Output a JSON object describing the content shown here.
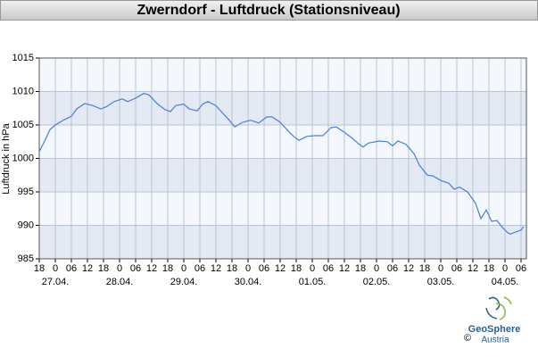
{
  "chart_data": {
    "type": "line",
    "title": "Zwerndorf - Luftdruck (Stationsniveau)",
    "ylabel": "Luftdruck in hPa",
    "color": "#4a7fd6",
    "grid": true,
    "xlim": [
      0,
      182
    ],
    "ylim": [
      985,
      1015
    ],
    "yticks": [
      985,
      990,
      995,
      1000,
      1005,
      1010,
      1015
    ],
    "xticks": [
      {
        "value": 0,
        "label": "18"
      },
      {
        "value": 6,
        "label": "0"
      },
      {
        "value": 12,
        "label": "06"
      },
      {
        "value": 18,
        "label": "12"
      },
      {
        "value": 24,
        "label": "18"
      },
      {
        "value": 30,
        "label": "0"
      },
      {
        "value": 36,
        "label": "06"
      },
      {
        "value": 42,
        "label": "12"
      },
      {
        "value": 48,
        "label": "18"
      },
      {
        "value": 54,
        "label": "0"
      },
      {
        "value": 60,
        "label": "06"
      },
      {
        "value": 66,
        "label": "12"
      },
      {
        "value": 72,
        "label": "18"
      },
      {
        "value": 78,
        "label": "0"
      },
      {
        "value": 84,
        "label": "06"
      },
      {
        "value": 90,
        "label": "12"
      },
      {
        "value": 96,
        "label": "18"
      },
      {
        "value": 102,
        "label": "0"
      },
      {
        "value": 108,
        "label": "06"
      },
      {
        "value": 114,
        "label": "12"
      },
      {
        "value": 120,
        "label": "18"
      },
      {
        "value": 126,
        "label": "0"
      },
      {
        "value": 132,
        "label": "06"
      },
      {
        "value": 138,
        "label": "12"
      },
      {
        "value": 144,
        "label": "18"
      },
      {
        "value": 150,
        "label": "0"
      },
      {
        "value": 156,
        "label": "06"
      },
      {
        "value": 162,
        "label": "12"
      },
      {
        "value": 168,
        "label": "18"
      },
      {
        "value": 174,
        "label": "0"
      },
      {
        "value": 180,
        "label": "06"
      }
    ],
    "date_labels": [
      {
        "value": 6,
        "label": "27.04."
      },
      {
        "value": 30,
        "label": "28.04."
      },
      {
        "value": 54,
        "label": "29.04."
      },
      {
        "value": 78,
        "label": "30.04."
      },
      {
        "value": 102,
        "label": "01.05."
      },
      {
        "value": 126,
        "label": "02.05."
      },
      {
        "value": 150,
        "label": "03.05."
      },
      {
        "value": 174,
        "label": "04.05."
      }
    ],
    "x": [
      0,
      2,
      4,
      6,
      9,
      12,
      14,
      17,
      20,
      23,
      25,
      28,
      31,
      33,
      36,
      39,
      41,
      44,
      47,
      49,
      51,
      54,
      56,
      59,
      61,
      63,
      66,
      68,
      71,
      73,
      76,
      79,
      82,
      85,
      87,
      90,
      93,
      95,
      97,
      100,
      103,
      106,
      109,
      111,
      114,
      117,
      119,
      121,
      123,
      127,
      130,
      132,
      134,
      137,
      140,
      142,
      145,
      147,
      150,
      153,
      155,
      157,
      160,
      163,
      165,
      167,
      169,
      171,
      173,
      175,
      176,
      180,
      181
    ],
    "values": [
      1001.0,
      1002.6,
      1004.3,
      1005.0,
      1005.7,
      1006.3,
      1007.4,
      1008.2,
      1007.9,
      1007.4,
      1007.7,
      1008.5,
      1008.9,
      1008.5,
      1009.0,
      1009.7,
      1009.5,
      1008.2,
      1007.3,
      1007.0,
      1007.9,
      1008.1,
      1007.4,
      1007.1,
      1008.1,
      1008.5,
      1007.9,
      1007.0,
      1005.7,
      1004.7,
      1005.4,
      1005.7,
      1005.3,
      1006.2,
      1006.2,
      1005.4,
      1004.1,
      1003.3,
      1002.7,
      1003.3,
      1003.4,
      1003.4,
      1004.6,
      1004.7,
      1003.9,
      1003.0,
      1002.3,
      1001.7,
      1002.3,
      1002.6,
      1002.5,
      1001.9,
      1002.6,
      1002.1,
      1000.7,
      999.0,
      997.5,
      997.4,
      996.7,
      996.3,
      995.4,
      995.7,
      995.0,
      993.3,
      991.0,
      992.3,
      990.6,
      990.7,
      989.7,
      988.9,
      988.7,
      989.3,
      989.8
    ]
  },
  "logo": {
    "copyright": "©",
    "name": "GeoSphere",
    "sub": "Austria"
  }
}
